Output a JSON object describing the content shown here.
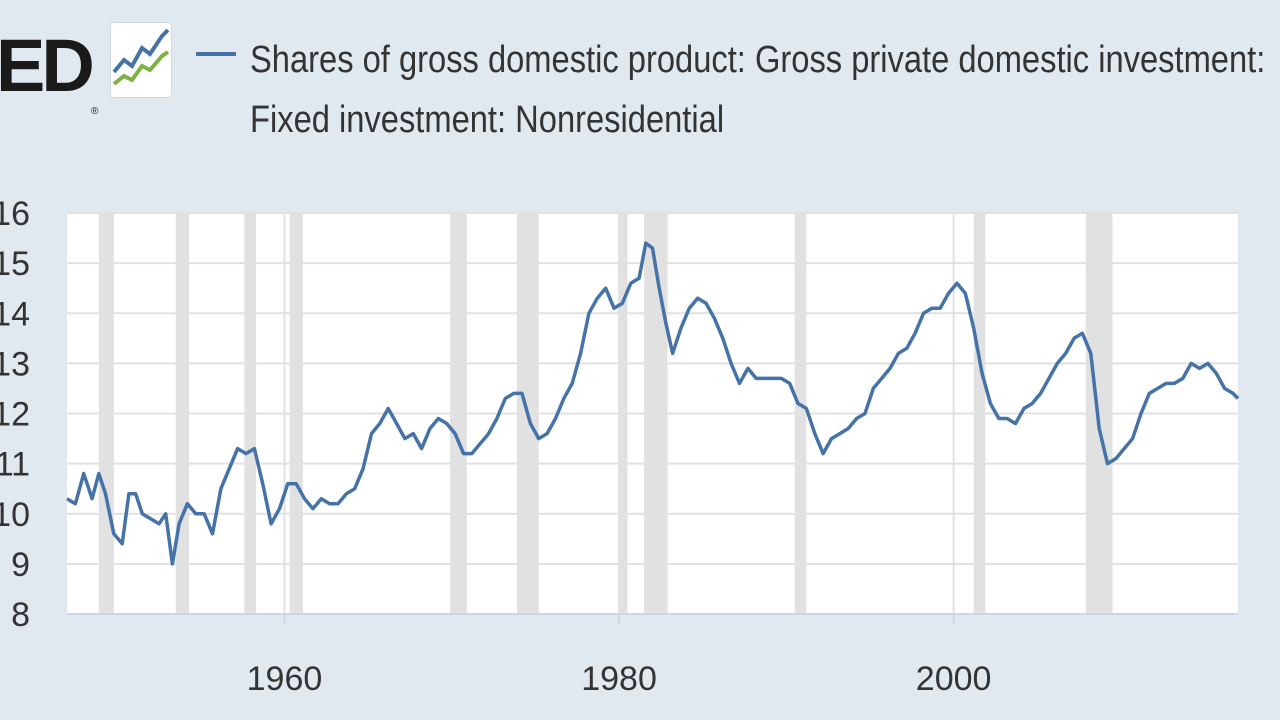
{
  "logo": {
    "text": "ED",
    "registered": "®",
    "icon": "trend-graph-icon",
    "icon_colors": [
      "#4572a7",
      "#7cb342"
    ]
  },
  "legend": {
    "line1": "Shares of gross domestic product: Gross private domestic investment:",
    "line2": "Fixed investment: Nonresidential",
    "color": "#4572a7"
  },
  "chart_data": {
    "type": "line",
    "title": "Shares of gross domestic product: Gross private domestic investment: Fixed investment: Nonresidential",
    "xlabel": "",
    "ylabel": "",
    "xlim": [
      1947.0,
      2017.0
    ],
    "ylim": [
      8,
      16
    ],
    "yticks": [
      8,
      9,
      10,
      11,
      12,
      13,
      14,
      15,
      16
    ],
    "xticks": [
      1960,
      1980,
      2000
    ],
    "grid": true,
    "line_color": "#4572a7",
    "recession_color": "#e1e1e1",
    "recessions": [
      [
        1948.9,
        1949.8
      ],
      [
        1953.5,
        1954.3
      ],
      [
        1957.6,
        1958.3
      ],
      [
        1960.3,
        1961.1
      ],
      [
        1969.9,
        1970.9
      ],
      [
        1973.9,
        1975.2
      ],
      [
        1980.0,
        1980.5
      ],
      [
        1981.5,
        1982.9
      ],
      [
        1990.5,
        1991.2
      ],
      [
        2001.2,
        2001.9
      ],
      [
        2007.9,
        2009.5
      ]
    ],
    "series": [
      {
        "name": "Shares of gross domestic product: Gross private domestic investment: Fixed investment: Nonresidential",
        "x": [
          1947.0,
          1947.5,
          1948.0,
          1948.5,
          1948.9,
          1949.3,
          1949.8,
          1950.3,
          1950.7,
          1951.1,
          1951.5,
          1952.0,
          1952.5,
          1952.9,
          1953.3,
          1953.7,
          1954.2,
          1954.7,
          1955.2,
          1955.7,
          1956.2,
          1956.7,
          1957.2,
          1957.7,
          1958.2,
          1958.7,
          1959.2,
          1959.7,
          1960.2,
          1960.7,
          1961.2,
          1961.7,
          1962.2,
          1962.7,
          1963.2,
          1963.7,
          1964.2,
          1964.7,
          1965.2,
          1965.7,
          1966.2,
          1966.7,
          1967.2,
          1967.7,
          1968.2,
          1968.7,
          1969.2,
          1969.7,
          1970.2,
          1970.7,
          1971.2,
          1971.7,
          1972.2,
          1972.7,
          1973.2,
          1973.7,
          1974.2,
          1974.7,
          1975.2,
          1975.7,
          1976.2,
          1976.7,
          1977.2,
          1977.7,
          1978.2,
          1978.7,
          1979.2,
          1979.7,
          1980.2,
          1980.7,
          1981.2,
          1981.6,
          1982.0,
          1982.4,
          1982.8,
          1983.2,
          1983.7,
          1984.2,
          1984.7,
          1985.2,
          1985.7,
          1986.2,
          1986.7,
          1987.2,
          1987.7,
          1988.2,
          1988.7,
          1989.2,
          1989.7,
          1990.2,
          1990.7,
          1991.2,
          1991.7,
          1992.2,
          1992.7,
          1993.2,
          1993.7,
          1994.2,
          1994.7,
          1995.2,
          1995.7,
          1996.2,
          1996.7,
          1997.2,
          1997.7,
          1998.2,
          1998.7,
          1999.2,
          1999.7,
          2000.2,
          2000.7,
          2001.2,
          2001.7,
          2002.2,
          2002.7,
          2003.2,
          2003.7,
          2004.2,
          2004.7,
          2005.2,
          2005.7,
          2006.2,
          2006.7,
          2007.2,
          2007.7,
          2008.2,
          2008.7,
          2009.2,
          2009.7,
          2010.2,
          2010.7,
          2011.2,
          2011.7,
          2012.2,
          2012.7,
          2013.2,
          2013.7,
          2014.2,
          2014.7,
          2015.2,
          2015.7,
          2016.2,
          2016.7,
          2017.0
        ],
        "values": [
          10.3,
          10.2,
          10.8,
          10.3,
          10.8,
          10.4,
          9.6,
          9.4,
          10.4,
          10.4,
          10.0,
          9.9,
          9.8,
          10.0,
          9.0,
          9.8,
          10.2,
          10.0,
          10.0,
          9.6,
          10.5,
          10.9,
          11.3,
          11.2,
          11.3,
          10.6,
          9.8,
          10.1,
          10.6,
          10.6,
          10.3,
          10.1,
          10.3,
          10.2,
          10.2,
          10.4,
          10.5,
          10.9,
          11.6,
          11.8,
          12.1,
          11.8,
          11.5,
          11.6,
          11.3,
          11.7,
          11.9,
          11.8,
          11.6,
          11.2,
          11.2,
          11.4,
          11.6,
          11.9,
          12.3,
          12.4,
          12.4,
          11.8,
          11.5,
          11.6,
          11.9,
          12.3,
          12.6,
          13.2,
          14.0,
          14.3,
          14.5,
          14.1,
          14.2,
          14.6,
          14.7,
          15.4,
          15.3,
          14.5,
          13.8,
          13.2,
          13.7,
          14.1,
          14.3,
          14.2,
          13.9,
          13.5,
          13.0,
          12.6,
          12.9,
          12.7,
          12.7,
          12.7,
          12.7,
          12.6,
          12.2,
          12.1,
          11.6,
          11.2,
          11.5,
          11.6,
          11.7,
          11.9,
          12.0,
          12.5,
          12.7,
          12.9,
          13.2,
          13.3,
          13.6,
          14.0,
          14.1,
          14.1,
          14.4,
          14.6,
          14.4,
          13.7,
          12.8,
          12.2,
          11.9,
          11.9,
          11.8,
          12.1,
          12.2,
          12.4,
          12.7,
          13.0,
          13.2,
          13.5,
          13.6,
          13.2,
          11.7,
          11.0,
          11.1,
          11.3,
          11.5,
          12.0,
          12.4,
          12.5,
          12.6,
          12.6,
          12.7,
          13.0,
          12.9,
          13.0,
          12.8,
          12.5,
          12.4,
          12.3
        ]
      }
    ]
  }
}
